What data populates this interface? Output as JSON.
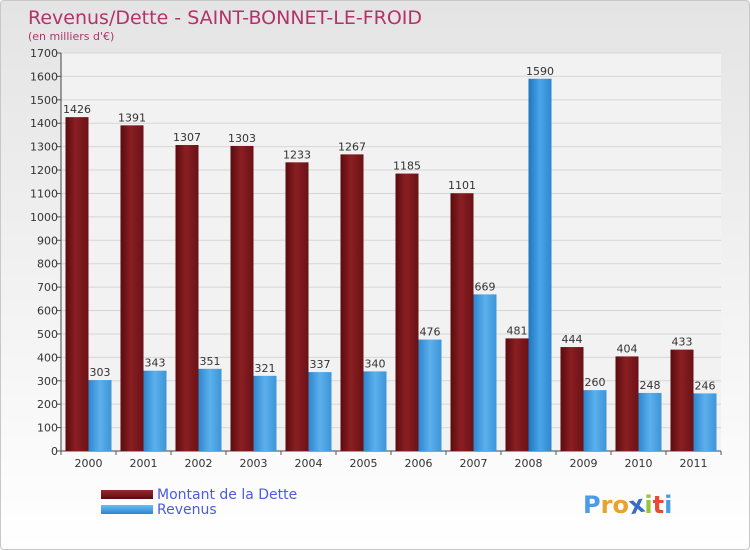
{
  "header": {
    "title": "Revenus/Dette - SAINT-BONNET-LE-FROID",
    "subtitle": "(en milliers d'€)"
  },
  "legend": {
    "items": [
      {
        "label": "Montant de la Dette",
        "color": "#7a1519"
      },
      {
        "label": "Revenus",
        "color": "#3d95d8"
      }
    ]
  },
  "logo": {
    "letters": [
      "P",
      "r",
      "o",
      "x",
      "i",
      "t",
      "i"
    ],
    "colors": [
      "#4c9be8",
      "#e8a32c",
      "#e8a32c",
      "#3b6cc4",
      "#9ac438",
      "#e84a35",
      "#4c9be8"
    ]
  },
  "chart_data": {
    "type": "bar",
    "categories": [
      "2000",
      "2001",
      "2002",
      "2003",
      "2004",
      "2005",
      "2006",
      "2007",
      "2008",
      "2009",
      "2010",
      "2011"
    ],
    "series": [
      {
        "name": "Montant de la Dette",
        "values": [
          1426,
          1391,
          1307,
          1303,
          1233,
          1267,
          1185,
          1101,
          481,
          444,
          404,
          433
        ],
        "color": "#7a1519"
      },
      {
        "name": "Revenus",
        "values": [
          303,
          343,
          351,
          321,
          337,
          340,
          476,
          669,
          1590,
          260,
          248,
          246
        ],
        "color": "#3d95d8"
      }
    ],
    "ylim": [
      0,
      1700
    ],
    "yticks": [
      0,
      100,
      200,
      300,
      400,
      500,
      600,
      700,
      800,
      900,
      1000,
      1100,
      1200,
      1300,
      1400,
      1500,
      1600,
      1700
    ],
    "grid": true,
    "legend": "bottom-left"
  }
}
